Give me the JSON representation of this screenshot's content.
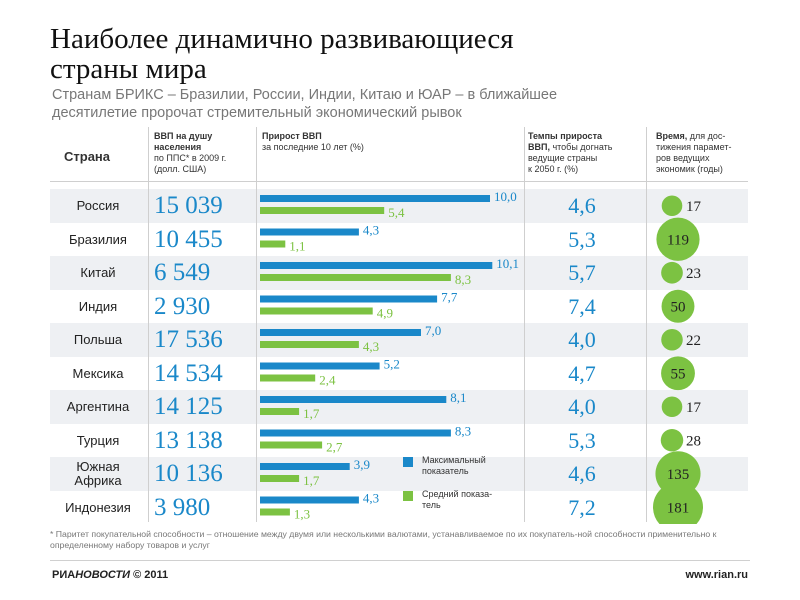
{
  "title_line1": "Наиболее динамично развивающиеся",
  "title_line2": "страны мира",
  "subtitle_line1": "Странам БРИКС – Бразилии, России, Индии, Китаю и ЮАР – в ближайшее",
  "subtitle_line2": "десятилетие пророчат стремительный экономический рывок",
  "headers": {
    "country": "Страна",
    "gdp_bold_1": "ВВП на душу",
    "gdp_bold_2": "населения",
    "gdp_rest_1": "по ППС* в 2009 г.",
    "gdp_rest_2": "(долл. США)",
    "growth_bold": "Прирост ВВП",
    "growth_rest": "за последние 10 лет (%)",
    "rate_bold_1": "Темпы прироста",
    "rate_bold_2": "ВВП,",
    "rate_rest_1": " чтобы догнать",
    "rate_rest_2": "ведущие страны",
    "rate_rest_3": "к 2050 г. (%)",
    "time_bold": "Время,",
    "time_rest_1": " для дос-",
    "time_rest_2": "тижения парамет-",
    "time_rest_3": "ров ведущих",
    "time_rest_4": "экономик (годы)"
  },
  "chart_data": {
    "type": "table",
    "columns": [
      "Страна",
      "ВВП на душу населения по ППС* в 2009 г. (долл. США)",
      "Прирост ВВП за последние 10 лет (%) — Максимальный показатель",
      "Прирост ВВП за последние 10 лет (%) — Средний показатель",
      "Темпы прироста ВВП, чтобы догнать ведущие страны к 2050 г. (%)",
      "Время, для достижения параметров ведущих экономик (годы)"
    ],
    "rows": [
      {
        "country": "Россия",
        "gdp": "15 039",
        "max": 10.0,
        "max_label": "10,0",
        "avg": 5.4,
        "avg_label": "5,4",
        "rate": "4,6",
        "years": 17
      },
      {
        "country": "Бразилия",
        "gdp": "10 455",
        "max": 4.3,
        "max_label": "4,3",
        "avg": 1.1,
        "avg_label": "1,1",
        "rate": "5,3",
        "years": 119
      },
      {
        "country": "Китай",
        "gdp": "6 549",
        "max": 10.1,
        "max_label": "10,1",
        "avg": 8.3,
        "avg_label": "8,3",
        "rate": "5,7",
        "years": 23
      },
      {
        "country": "Индия",
        "gdp": "2 930",
        "max": 7.7,
        "max_label": "7,7",
        "avg": 4.9,
        "avg_label": "4,9",
        "rate": "7,4",
        "years": 50
      },
      {
        "country": "Польша",
        "gdp": "17 536",
        "max": 7.0,
        "max_label": "7,0",
        "avg": 4.3,
        "avg_label": "4,3",
        "rate": "4,0",
        "years": 22
      },
      {
        "country": "Мексика",
        "gdp": "14 534",
        "max": 5.2,
        "max_label": "5,2",
        "avg": 2.4,
        "avg_label": "2,4",
        "rate": "4,7",
        "years": 55
      },
      {
        "country": "Аргентина",
        "gdp": "14 125",
        "max": 8.1,
        "max_label": "8,1",
        "avg": 1.7,
        "avg_label": "1,7",
        "rate": "4,0",
        "years": 17
      },
      {
        "country": "Турция",
        "gdp": "13 138",
        "max": 8.3,
        "max_label": "8,3",
        "avg": 2.7,
        "avg_label": "2,7",
        "rate": "5,3",
        "years": 28
      },
      {
        "country": "Южная\nАфрика",
        "gdp": "10 136",
        "max": 3.9,
        "max_label": "3,9",
        "avg": 1.7,
        "avg_label": "1,7",
        "rate": "4,6",
        "years": 135
      },
      {
        "country": "Индонезия",
        "gdp": "3 980",
        "max": 4.3,
        "max_label": "4,3",
        "avg": 1.3,
        "avg_label": "1,3",
        "rate": "7,2",
        "years": 181
      }
    ],
    "legend": [
      {
        "name": "Максимальный показатель",
        "line1": "Максимальный",
        "line2": "показатель",
        "color": "#1a88c9"
      },
      {
        "name": "Средний показатель",
        "line1": "Средний показа-",
        "line2": "тель",
        "color": "#7cc242"
      }
    ],
    "colors": {
      "max": "#1a88c9",
      "avg": "#7cc242",
      "dot": "#7cc242"
    }
  },
  "footnote": "* Паритет покупательной способности – отношение между двумя или несколькими валютами, устанавливаемое по их покупатель-ной способности применительно к определенному набору товаров и услуг",
  "footer": {
    "logo_a": "РИА",
    "logo_b": "НОВОСТИ",
    "copyright": " © 2011",
    "url": "www.rian.ru"
  }
}
